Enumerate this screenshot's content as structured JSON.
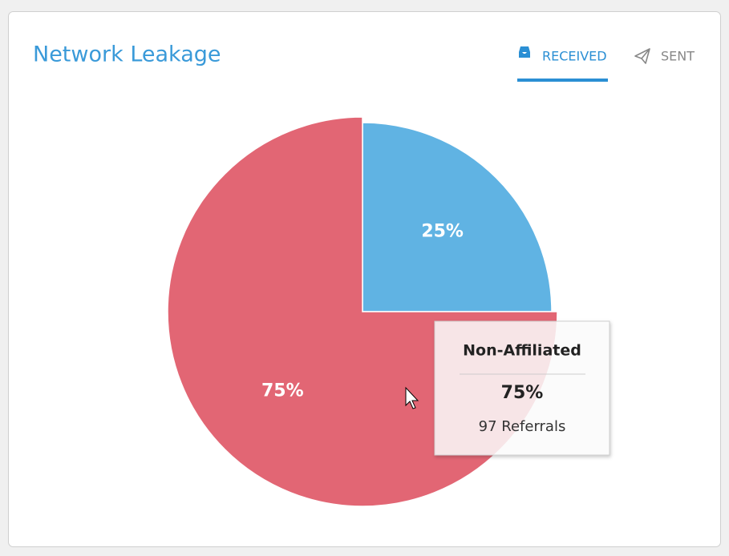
{
  "chart_data": {
    "type": "pie",
    "title": "Network Leakage",
    "categories": [
      null,
      "Non-Affiliated"
    ],
    "values": [
      25,
      75
    ],
    "value_labels": [
      "25%",
      "75%"
    ],
    "colors": [
      "#60b3e3",
      "#e26674"
    ],
    "tooltip": {
      "detail": "97 Referrals"
    }
  },
  "tabs": [
    "RECEIVED",
    "SENT"
  ]
}
